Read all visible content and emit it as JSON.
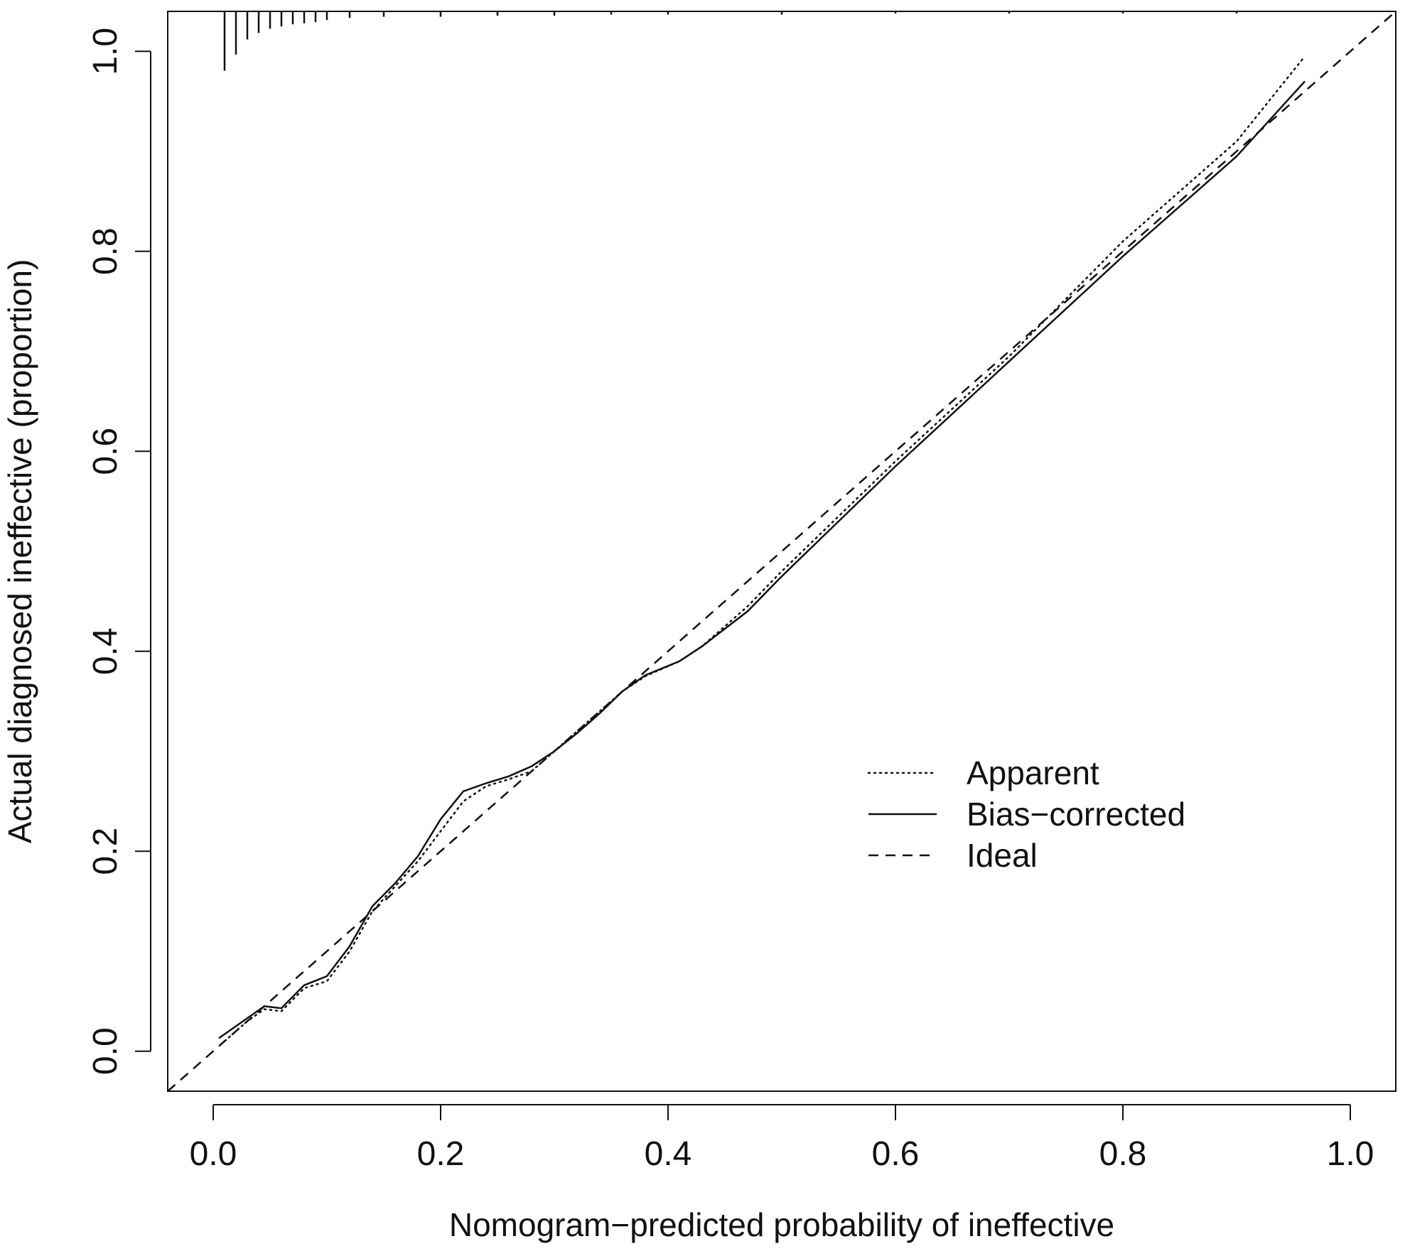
{
  "chart_data": {
    "type": "line",
    "title": "",
    "xlabel": "Nomogram−predicted probability of ineffective",
    "ylabel": "Actual diagnosed ineffective (proportion)",
    "xlim": [
      -0.04,
      1.04
    ],
    "ylim": [
      -0.04,
      1.04
    ],
    "x_ticks": [
      "0.0",
      "0.2",
      "0.4",
      "0.6",
      "0.8",
      "1.0"
    ],
    "y_ticks": [
      "0.0",
      "0.2",
      "0.4",
      "0.6",
      "0.8",
      "1.0"
    ],
    "grid": false,
    "legend_position": "center-right",
    "series": [
      {
        "name": "Apparent",
        "style": "dotted",
        "points": [
          [
            0.01,
            0.01
          ],
          [
            0.03,
            0.03
          ],
          [
            0.045,
            0.042
          ],
          [
            0.06,
            0.04
          ],
          [
            0.08,
            0.063
          ],
          [
            0.1,
            0.07
          ],
          [
            0.12,
            0.1
          ],
          [
            0.14,
            0.14
          ],
          [
            0.16,
            0.165
          ],
          [
            0.18,
            0.19
          ],
          [
            0.2,
            0.22
          ],
          [
            0.22,
            0.25
          ],
          [
            0.24,
            0.265
          ],
          [
            0.26,
            0.272
          ],
          [
            0.28,
            0.28
          ],
          [
            0.3,
            0.3
          ],
          [
            0.32,
            0.32
          ],
          [
            0.34,
            0.34
          ],
          [
            0.36,
            0.36
          ],
          [
            0.38,
            0.375
          ],
          [
            0.41,
            0.39
          ],
          [
            0.43,
            0.405
          ],
          [
            0.47,
            0.445
          ],
          [
            0.5,
            0.48
          ],
          [
            0.6,
            0.59
          ],
          [
            0.7,
            0.695
          ],
          [
            0.8,
            0.81
          ],
          [
            0.9,
            0.91
          ],
          [
            0.96,
            0.995
          ]
        ]
      },
      {
        "name": "Bias−corrected",
        "style": "solid",
        "points": [
          [
            0.005,
            0.013
          ],
          [
            0.02,
            0.025
          ],
          [
            0.045,
            0.045
          ],
          [
            0.06,
            0.043
          ],
          [
            0.08,
            0.066
          ],
          [
            0.1,
            0.075
          ],
          [
            0.12,
            0.105
          ],
          [
            0.14,
            0.145
          ],
          [
            0.16,
            0.168
          ],
          [
            0.18,
            0.195
          ],
          [
            0.2,
            0.232
          ],
          [
            0.22,
            0.26
          ],
          [
            0.24,
            0.268
          ],
          [
            0.26,
            0.275
          ],
          [
            0.28,
            0.285
          ],
          [
            0.3,
            0.3
          ],
          [
            0.32,
            0.318
          ],
          [
            0.34,
            0.338
          ],
          [
            0.36,
            0.36
          ],
          [
            0.38,
            0.376
          ],
          [
            0.41,
            0.39
          ],
          [
            0.43,
            0.405
          ],
          [
            0.47,
            0.44
          ],
          [
            0.5,
            0.475
          ],
          [
            0.6,
            0.585
          ],
          [
            0.7,
            0.69
          ],
          [
            0.8,
            0.795
          ],
          [
            0.9,
            0.895
          ],
          [
            0.96,
            0.97
          ]
        ]
      },
      {
        "name": "Ideal",
        "style": "dashed",
        "points": [
          [
            -0.04,
            -0.04
          ],
          [
            1.04,
            1.04
          ]
        ]
      }
    ],
    "rug": {
      "position": "top",
      "marks": [
        {
          "x": 0.01,
          "len": 0.055
        },
        {
          "x": 0.02,
          "len": 0.04
        },
        {
          "x": 0.03,
          "len": 0.026
        },
        {
          "x": 0.04,
          "len": 0.02
        },
        {
          "x": 0.05,
          "len": 0.016
        },
        {
          "x": 0.06,
          "len": 0.014
        },
        {
          "x": 0.07,
          "len": 0.012
        },
        {
          "x": 0.08,
          "len": 0.011
        },
        {
          "x": 0.09,
          "len": 0.01
        },
        {
          "x": 0.1,
          "len": 0.008
        },
        {
          "x": 0.12,
          "len": 0.006
        },
        {
          "x": 0.15,
          "len": 0.005
        },
        {
          "x": 0.2,
          "len": 0.005
        },
        {
          "x": 0.25,
          "len": 0.004
        },
        {
          "x": 0.3,
          "len": 0.004
        },
        {
          "x": 0.35,
          "len": 0.003
        },
        {
          "x": 0.4,
          "len": 0.003
        },
        {
          "x": 0.5,
          "len": 0.003
        },
        {
          "x": 0.6,
          "len": 0.002
        },
        {
          "x": 0.7,
          "len": 0.002
        },
        {
          "x": 0.8,
          "len": 0.002
        },
        {
          "x": 0.9,
          "len": 0.002
        }
      ]
    }
  }
}
